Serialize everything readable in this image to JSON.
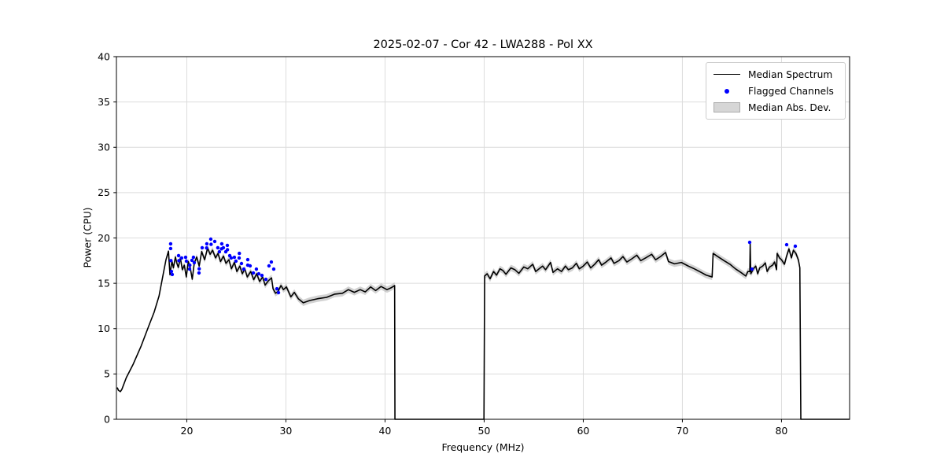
{
  "chart_data": {
    "type": "line+scatter",
    "title": "2025-02-07 - Cor 42 - LWA288 - Pol XX",
    "xlabel": "Frequency (MHz)",
    "ylabel": "Power (CPU)",
    "xlim": [
      12.9,
      86.87
    ],
    "ylim": [
      0,
      40
    ],
    "xticks": [
      20,
      30,
      40,
      50,
      60,
      70,
      80
    ],
    "yticks": [
      0,
      5,
      10,
      15,
      20,
      25,
      30,
      35,
      40
    ],
    "grid": true,
    "grid_color": "#dcdcdc",
    "legend": {
      "position": "upper right",
      "entries": [
        {
          "label": "Median Spectrum",
          "type": "line",
          "color": "#000000"
        },
        {
          "label": "Flagged Channels",
          "type": "dot",
          "color": "#0000ff"
        },
        {
          "label": "Median Abs. Dev.",
          "type": "patch",
          "color": "#d6d6d6"
        }
      ]
    },
    "series": [
      {
        "name": "Median Spectrum",
        "type": "line",
        "color": "#000000",
        "linewidth": 1.6,
        "points": [
          [
            13.0,
            3.45
          ],
          [
            13.1,
            3.2
          ],
          [
            13.3,
            3.05
          ],
          [
            13.45,
            3.3
          ],
          [
            13.9,
            4.6
          ],
          [
            14.6,
            6.1
          ],
          [
            15.4,
            8.1
          ],
          [
            16.2,
            10.4
          ],
          [
            16.7,
            11.8
          ],
          [
            17.2,
            13.6
          ],
          [
            17.6,
            15.9
          ],
          [
            17.9,
            17.6
          ],
          [
            18.15,
            18.55
          ],
          [
            18.3,
            15.95
          ],
          [
            18.5,
            17.45
          ],
          [
            18.65,
            16.7
          ],
          [
            18.85,
            17.9
          ],
          [
            19.0,
            17.2
          ],
          [
            19.15,
            16.75
          ],
          [
            19.35,
            17.8
          ],
          [
            19.55,
            16.5
          ],
          [
            19.75,
            17.0
          ],
          [
            19.95,
            15.7
          ],
          [
            20.15,
            17.4
          ],
          [
            20.35,
            16.7
          ],
          [
            20.55,
            15.45
          ],
          [
            20.75,
            17.2
          ],
          [
            21.0,
            17.9
          ],
          [
            21.25,
            16.9
          ],
          [
            21.5,
            18.5
          ],
          [
            21.8,
            17.6
          ],
          [
            22.1,
            18.9
          ],
          [
            22.35,
            18.2
          ],
          [
            22.6,
            18.65
          ],
          [
            22.9,
            17.8
          ],
          [
            23.15,
            18.3
          ],
          [
            23.4,
            17.4
          ],
          [
            23.7,
            18.0
          ],
          [
            23.95,
            17.2
          ],
          [
            24.25,
            17.6
          ],
          [
            24.5,
            16.6
          ],
          [
            24.8,
            17.3
          ],
          [
            25.05,
            16.3
          ],
          [
            25.35,
            16.9
          ],
          [
            25.6,
            16.05
          ],
          [
            25.85,
            16.6
          ],
          [
            26.1,
            15.7
          ],
          [
            26.45,
            16.3
          ],
          [
            26.75,
            15.4
          ],
          [
            27.05,
            16.05
          ],
          [
            27.35,
            15.2
          ],
          [
            27.65,
            15.7
          ],
          [
            27.9,
            14.8
          ],
          [
            28.25,
            15.3
          ],
          [
            28.55,
            15.6
          ],
          [
            28.7,
            14.4
          ],
          [
            28.95,
            13.9
          ],
          [
            29.2,
            14.1
          ],
          [
            29.5,
            14.75
          ],
          [
            29.75,
            14.3
          ],
          [
            30.05,
            14.6
          ],
          [
            30.5,
            13.5
          ],
          [
            30.85,
            14.0
          ],
          [
            31.25,
            13.3
          ],
          [
            31.75,
            12.85
          ],
          [
            32.4,
            13.1
          ],
          [
            33.2,
            13.3
          ],
          [
            34.1,
            13.45
          ],
          [
            34.9,
            13.8
          ],
          [
            35.7,
            13.9
          ],
          [
            36.3,
            14.3
          ],
          [
            36.9,
            14.0
          ],
          [
            37.5,
            14.3
          ],
          [
            38.0,
            14.05
          ],
          [
            38.55,
            14.6
          ],
          [
            39.05,
            14.2
          ],
          [
            39.6,
            14.65
          ],
          [
            40.2,
            14.3
          ],
          [
            40.6,
            14.5
          ],
          [
            40.97,
            14.75
          ],
          [
            41.0,
            0
          ],
          [
            49.98,
            0
          ],
          [
            50.05,
            15.8
          ],
          [
            50.3,
            16.05
          ],
          [
            50.6,
            15.5
          ],
          [
            50.95,
            16.3
          ],
          [
            51.25,
            15.9
          ],
          [
            51.6,
            16.6
          ],
          [
            51.9,
            16.4
          ],
          [
            52.2,
            16.0
          ],
          [
            52.7,
            16.7
          ],
          [
            53.1,
            16.5
          ],
          [
            53.5,
            16.1
          ],
          [
            54.0,
            16.8
          ],
          [
            54.4,
            16.6
          ],
          [
            54.9,
            17.1
          ],
          [
            55.2,
            16.3
          ],
          [
            55.6,
            16.65
          ],
          [
            55.9,
            16.9
          ],
          [
            56.2,
            16.5
          ],
          [
            56.7,
            17.3
          ],
          [
            56.95,
            16.2
          ],
          [
            57.4,
            16.6
          ],
          [
            57.8,
            16.3
          ],
          [
            58.2,
            16.9
          ],
          [
            58.5,
            16.5
          ],
          [
            58.9,
            16.7
          ],
          [
            59.3,
            17.2
          ],
          [
            59.6,
            16.6
          ],
          [
            60.0,
            16.9
          ],
          [
            60.4,
            17.35
          ],
          [
            60.75,
            16.7
          ],
          [
            61.15,
            17.1
          ],
          [
            61.55,
            17.6
          ],
          [
            61.85,
            17.0
          ],
          [
            62.3,
            17.35
          ],
          [
            62.8,
            17.8
          ],
          [
            63.1,
            17.2
          ],
          [
            63.6,
            17.5
          ],
          [
            64.0,
            17.95
          ],
          [
            64.4,
            17.35
          ],
          [
            64.9,
            17.7
          ],
          [
            65.4,
            18.1
          ],
          [
            65.8,
            17.5
          ],
          [
            66.3,
            17.8
          ],
          [
            66.9,
            18.2
          ],
          [
            67.3,
            17.6
          ],
          [
            67.8,
            17.95
          ],
          [
            68.3,
            18.4
          ],
          [
            68.6,
            17.4
          ],
          [
            69.2,
            17.15
          ],
          [
            69.9,
            17.3
          ],
          [
            70.6,
            16.9
          ],
          [
            71.2,
            16.6
          ],
          [
            71.9,
            16.2
          ],
          [
            72.4,
            15.9
          ],
          [
            73.0,
            15.7
          ],
          [
            73.1,
            18.3
          ],
          [
            73.5,
            18.0
          ],
          [
            74.2,
            17.5
          ],
          [
            74.8,
            17.1
          ],
          [
            75.35,
            16.6
          ],
          [
            75.9,
            16.2
          ],
          [
            76.4,
            15.8
          ],
          [
            76.6,
            16.3
          ],
          [
            76.8,
            16.3
          ],
          [
            76.84,
            19.35
          ],
          [
            76.9,
            16.05
          ],
          [
            77.2,
            16.65
          ],
          [
            77.4,
            16.9
          ],
          [
            77.6,
            16.05
          ],
          [
            77.8,
            16.7
          ],
          [
            78.1,
            16.9
          ],
          [
            78.37,
            17.25
          ],
          [
            78.55,
            16.3
          ],
          [
            78.8,
            16.8
          ],
          [
            79.1,
            17.0
          ],
          [
            79.3,
            17.35
          ],
          [
            79.5,
            16.5
          ],
          [
            79.56,
            18.3
          ],
          [
            79.8,
            17.8
          ],
          [
            80.0,
            17.6
          ],
          [
            80.3,
            17.1
          ],
          [
            80.5,
            17.95
          ],
          [
            80.75,
            18.8
          ],
          [
            81.0,
            17.8
          ],
          [
            81.2,
            18.65
          ],
          [
            81.45,
            18.3
          ],
          [
            81.7,
            17.6
          ],
          [
            81.85,
            16.7
          ],
          [
            81.95,
            0
          ],
          [
            86.85,
            0
          ]
        ]
      },
      {
        "name": "Median Abs. Dev.",
        "type": "band",
        "color": "#9e9e9e",
        "opacity": 0.45,
        "halfwidth": 0.35,
        "follows": "Median Spectrum",
        "ranges": [
          [
            18.15,
            40.97
          ],
          [
            50.05,
            81.85
          ]
        ]
      },
      {
        "name": "Flagged Channels",
        "type": "scatter",
        "color": "#0000ff",
        "marker_radius_px": 2.2,
        "points": [
          [
            18.37,
            19.35
          ],
          [
            18.37,
            18.83
          ],
          [
            18.4,
            17.5
          ],
          [
            18.45,
            16.31
          ],
          [
            18.53,
            15.97
          ],
          [
            19.17,
            18.05
          ],
          [
            19.2,
            17.5
          ],
          [
            19.48,
            17.79
          ],
          [
            19.88,
            17.87
          ],
          [
            19.96,
            17.44
          ],
          [
            20.28,
            16.57
          ],
          [
            20.3,
            17.0
          ],
          [
            20.52,
            17.53
          ],
          [
            20.67,
            17.87
          ],
          [
            20.75,
            17.27
          ],
          [
            21.23,
            16.14
          ],
          [
            21.25,
            16.6
          ],
          [
            21.55,
            18.92
          ],
          [
            22.0,
            18.9
          ],
          [
            22.02,
            19.35
          ],
          [
            22.42,
            19.87
          ],
          [
            22.45,
            19.3
          ],
          [
            22.82,
            19.61
          ],
          [
            23.13,
            18.92
          ],
          [
            23.29,
            18.48
          ],
          [
            23.5,
            18.8
          ],
          [
            23.53,
            19.35
          ],
          [
            23.69,
            18.92
          ],
          [
            23.93,
            18.48
          ],
          [
            24.09,
            19.18
          ],
          [
            24.1,
            18.7
          ],
          [
            24.33,
            18.05
          ],
          [
            24.48,
            17.79
          ],
          [
            24.8,
            17.87
          ],
          [
            24.96,
            17.44
          ],
          [
            25.28,
            17.79
          ],
          [
            25.3,
            18.3
          ],
          [
            25.52,
            17.18
          ],
          [
            25.75,
            16.57
          ],
          [
            26.15,
            17.61
          ],
          [
            26.15,
            17.0
          ],
          [
            26.39,
            16.92
          ],
          [
            26.71,
            16.14
          ],
          [
            27.02,
            16.57
          ],
          [
            27.26,
            16.05
          ],
          [
            27.58,
            15.87
          ],
          [
            27.98,
            15.44
          ],
          [
            28.29,
            16.92
          ],
          [
            28.53,
            17.35
          ],
          [
            28.77,
            16.57
          ],
          [
            29.09,
            14.4
          ],
          [
            29.25,
            13.97
          ],
          [
            76.79,
            19.52
          ],
          [
            77.02,
            16.57
          ],
          [
            80.52,
            19.26
          ],
          [
            81.39,
            19.09
          ]
        ]
      }
    ]
  }
}
